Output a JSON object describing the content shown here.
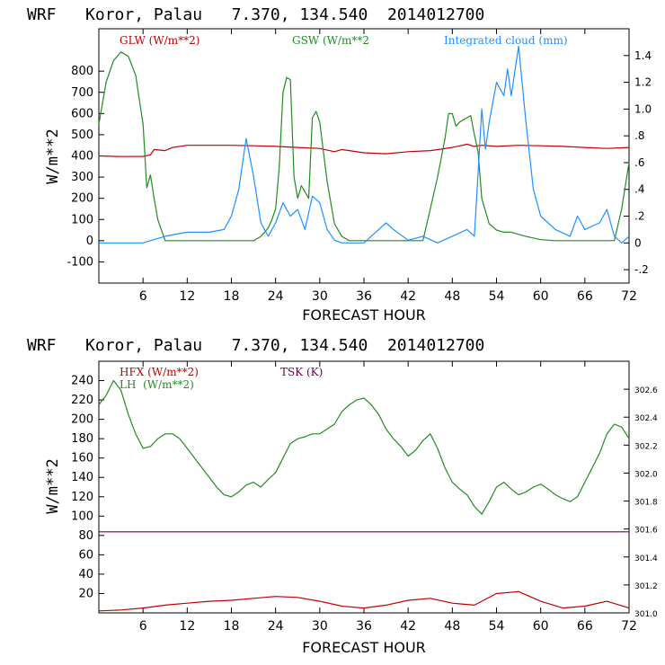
{
  "colors": {
    "glw": "#c00000",
    "gsw": "#228b22",
    "cloud": "#1e90ff",
    "hfx": "#c00000",
    "lh": "#228b22",
    "tsk": "#700050",
    "frame": "#000000"
  },
  "chart_data": [
    {
      "type": "line",
      "title": "WRF   Koror, Palau   7.370, 134.540  2014012700",
      "xlabel": "FORECAST HOUR",
      "ylabel": "W/m**2",
      "xlim": [
        0,
        72
      ],
      "ylim": [
        -200,
        1000
      ],
      "y2lim": [
        -0.3,
        1.6
      ],
      "xticks": [
        6,
        12,
        18,
        24,
        30,
        36,
        42,
        48,
        54,
        60,
        66,
        72
      ],
      "yticks": [
        -100,
        0,
        100,
        200,
        300,
        400,
        500,
        600,
        700,
        800
      ],
      "y2ticks": [
        "-.2",
        "0",
        ".2",
        ".4",
        ".6",
        ".8",
        "1.0",
        "1.2",
        "1.4"
      ],
      "y2tick_values": [
        -0.2,
        0,
        0.2,
        0.4,
        0.6,
        0.8,
        1.0,
        1.2,
        1.4
      ],
      "grid": false,
      "series": [
        {
          "name": "GLW (W/m**2)",
          "axis": "left",
          "x": [
            0,
            3,
            6,
            7,
            7.5,
            9,
            10,
            12,
            15,
            18,
            21,
            24,
            27,
            30,
            32,
            33,
            36,
            39,
            42,
            45,
            48,
            50,
            51,
            52,
            54,
            57,
            60,
            63,
            66,
            69,
            72
          ],
          "y": [
            400,
            397,
            398,
            405,
            430,
            425,
            440,
            450,
            450,
            450,
            448,
            445,
            440,
            435,
            420,
            430,
            415,
            410,
            420,
            425,
            440,
            455,
            445,
            450,
            445,
            450,
            448,
            445,
            440,
            435,
            440
          ]
        },
        {
          "name": "GSW (W/m**2",
          "axis": "left",
          "x": [
            0,
            1,
            2,
            3,
            4,
            5,
            6,
            6.5,
            7,
            7.5,
            8,
            9,
            10,
            12,
            18,
            21,
            22,
            23,
            23.5,
            24,
            24.5,
            25,
            25.5,
            26,
            26.5,
            27,
            27.5,
            28,
            28.5,
            29,
            29.5,
            30,
            30.5,
            31,
            32,
            33,
            34,
            36,
            40,
            44,
            45,
            46,
            47,
            47.5,
            48,
            48.5,
            49,
            50,
            50.5,
            51,
            51.5,
            52,
            53,
            54,
            55,
            56,
            58,
            60,
            62,
            66,
            70,
            71,
            72
          ],
          "y": [
            550,
            750,
            850,
            890,
            870,
            780,
            550,
            250,
            310,
            200,
            100,
            0,
            0,
            0,
            0,
            0,
            20,
            60,
            100,
            150,
            350,
            700,
            770,
            760,
            300,
            200,
            260,
            230,
            200,
            580,
            610,
            560,
            420,
            280,
            80,
            20,
            0,
            0,
            0,
            0,
            150,
            300,
            480,
            600,
            600,
            540,
            560,
            580,
            590,
            500,
            420,
            200,
            80,
            50,
            40,
            40,
            20,
            5,
            0,
            0,
            0,
            150,
            370
          ]
        },
        {
          "name": "Integrated cloud (mm)",
          "axis": "right",
          "x": [
            0,
            6,
            9,
            12,
            15,
            17,
            18,
            19,
            20,
            21,
            22,
            23,
            24,
            25,
            26,
            27,
            28,
            29,
            30,
            31,
            32,
            33,
            36,
            38,
            39,
            40,
            42,
            44,
            46,
            48,
            50,
            51,
            52,
            52.5,
            53,
            54,
            55,
            55.5,
            56,
            57,
            58,
            59,
            60,
            62,
            64,
            65,
            66,
            68,
            69,
            70,
            71,
            72
          ],
          "y": [
            0,
            0,
            0.05,
            0.08,
            0.08,
            0.1,
            0.2,
            0.4,
            0.78,
            0.5,
            0.15,
            0.05,
            0.15,
            0.3,
            0.2,
            0.25,
            0.1,
            0.35,
            0.3,
            0.1,
            0.02,
            0,
            0,
            0.1,
            0.15,
            0.1,
            0.02,
            0.05,
            0.0,
            0.05,
            0.1,
            0.05,
            1.0,
            0.7,
            0.9,
            1.2,
            1.1,
            1.3,
            1.1,
            1.47,
            0.9,
            0.4,
            0.2,
            0.1,
            0.05,
            0.2,
            0.1,
            0.15,
            0.25,
            0.05,
            0.0,
            0.05
          ]
        }
      ]
    },
    {
      "type": "line",
      "title": "WRF   Koror, Palau   7.370, 134.540  2014012700",
      "xlabel": "FORECAST HOUR",
      "ylabel": "W/m**2",
      "xlim": [
        0,
        72
      ],
      "ylim": [
        0,
        260
      ],
      "y2lim": [
        301.0,
        302.8
      ],
      "xticks": [
        6,
        12,
        18,
        24,
        30,
        36,
        42,
        48,
        54,
        60,
        66,
        72
      ],
      "yticks": [
        20,
        40,
        60,
        80,
        100,
        120,
        140,
        160,
        180,
        200,
        220,
        240
      ],
      "y2ticks": [
        "301.0",
        "301.2",
        "301.4",
        "301.6",
        "301.8",
        "302.0",
        "302.2",
        "302.4",
        "302.6"
      ],
      "y2tick_values": [
        301.0,
        301.2,
        301.4,
        301.6,
        301.8,
        302.0,
        302.2,
        302.4,
        302.6
      ],
      "grid": false,
      "series": [
        {
          "name": "HFX (W/m**2)",
          "axis": "left",
          "x": [
            0,
            3,
            6,
            9,
            12,
            15,
            18,
            21,
            24,
            27,
            30,
            33,
            36,
            39,
            42,
            45,
            48,
            51,
            54,
            57,
            60,
            63,
            66,
            69,
            72
          ],
          "y": [
            2,
            3,
            5,
            8,
            10,
            12,
            13,
            15,
            17,
            16,
            12,
            7,
            5,
            8,
            13,
            15,
            10,
            8,
            20,
            22,
            12,
            5,
            7,
            12,
            5
          ]
        },
        {
          "name": "LH  (W/m**2)",
          "axis": "left",
          "x": [
            0,
            1,
            2,
            3,
            4,
            5,
            6,
            7,
            8,
            9,
            10,
            11,
            12,
            13,
            14,
            15,
            16,
            17,
            18,
            19,
            20,
            21,
            22,
            23,
            24,
            25,
            26,
            27,
            28,
            29,
            30,
            31,
            32,
            33,
            34,
            35,
            36,
            37,
            38,
            39,
            40,
            41,
            42,
            43,
            44,
            45,
            46,
            47,
            48,
            49,
            50,
            51,
            52,
            53,
            54,
            55,
            56,
            57,
            58,
            59,
            60,
            61,
            62,
            63,
            64,
            65,
            66,
            67,
            68,
            69,
            70,
            71,
            72
          ],
          "y": [
            215,
            225,
            240,
            230,
            205,
            185,
            170,
            172,
            180,
            185,
            185,
            180,
            170,
            160,
            150,
            140,
            130,
            122,
            120,
            125,
            132,
            135,
            130,
            138,
            145,
            160,
            175,
            180,
            182,
            185,
            185,
            190,
            195,
            208,
            215,
            220,
            222,
            215,
            205,
            190,
            180,
            172,
            162,
            168,
            178,
            185,
            170,
            150,
            135,
            128,
            122,
            110,
            102,
            115,
            130,
            135,
            128,
            122,
            125,
            130,
            133,
            128,
            122,
            118,
            115,
            120,
            135,
            150,
            165,
            185,
            195,
            192,
            180
          ]
        },
        {
          "name": "TSK (K)",
          "axis": "right",
          "x": [
            0,
            72
          ],
          "y": [
            301.58,
            301.58
          ]
        }
      ]
    }
  ]
}
